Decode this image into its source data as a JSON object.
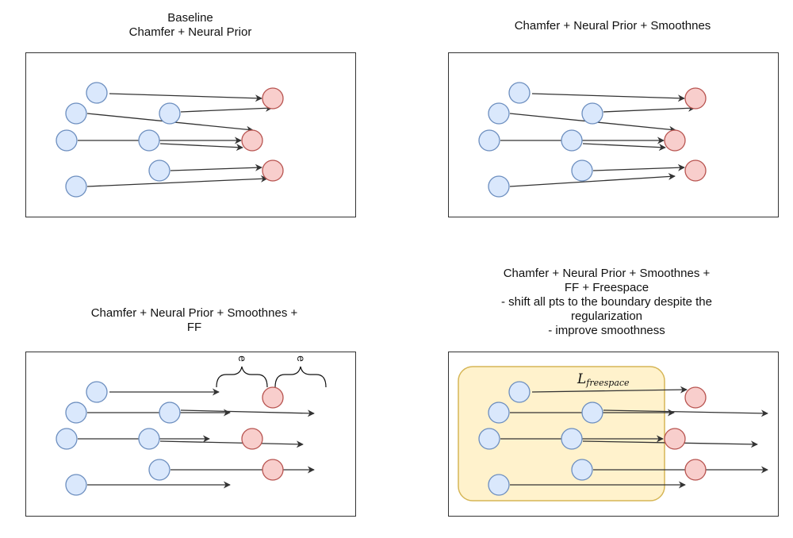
{
  "panels": [
    {
      "title_lines": [
        "Baseline",
        "Chamfer + Neural Prior"
      ]
    },
    {
      "title_lines": [
        "Chamfer + Neural Prior + Smoothnes"
      ]
    },
    {
      "title_lines": [
        "Chamfer + Neural Prior + Smoothnes +",
        "FF"
      ]
    },
    {
      "title_lines": [
        "Chamfer + Neural Prior + Smoothnes +",
        "FF + Freespace",
        "- shift all pts to the boundary despite the",
        "regularization",
        "- improve smoothness"
      ]
    }
  ],
  "annotations": {
    "epsilon_symbol": "e",
    "freespace_L": "L",
    "freespace_sub": "freespace"
  },
  "colors": {
    "source_fill": "#dae8fc",
    "source_stroke": "#6c8ebf",
    "target_fill": "#f8cecc",
    "target_stroke": "#b85450",
    "freespace_fill": "#fff2cc",
    "freespace_stroke": "#d6b656",
    "arrow": "#333333"
  }
}
